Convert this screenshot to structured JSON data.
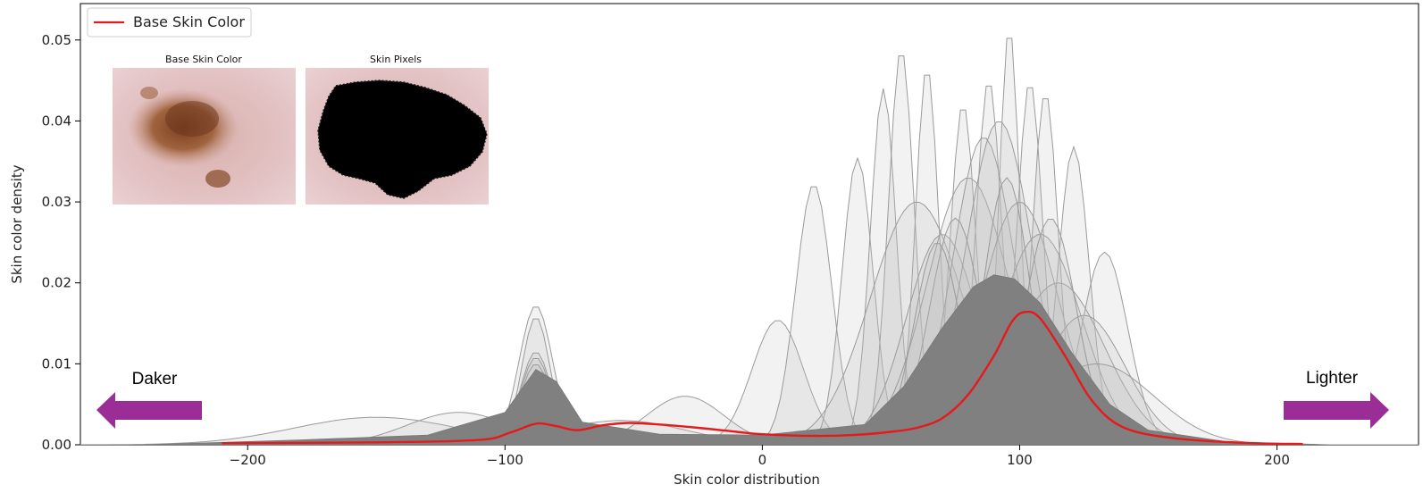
{
  "chart_data": {
    "type": "area",
    "xlabel": "Skin color distribution",
    "ylabel": "Skin color density",
    "xlim": [
      -265,
      255
    ],
    "ylim": [
      0,
      0.0545
    ],
    "x_ticks": [
      -200,
      -100,
      0,
      100,
      200
    ],
    "x_tick_labels": [
      "−200",
      "−100",
      "0",
      "100",
      "200"
    ],
    "y_ticks": [
      0,
      0.01,
      0.02,
      0.03,
      0.04,
      0.05
    ],
    "y_tick_labels": [
      "0.00",
      "0.01",
      "0.02",
      "0.03",
      "0.04",
      "0.05"
    ],
    "legend": {
      "placement": "top-left",
      "entries": [
        {
          "label": "Base Skin Color",
          "color": "#e41a1c"
        }
      ]
    },
    "series": [
      {
        "name": "Base Skin Color",
        "color": "#e41a1c",
        "points": [
          [
            -210,
            0.0002
          ],
          [
            -150,
            0.0003
          ],
          [
            -110,
            0.0006
          ],
          [
            -98,
            0.0015
          ],
          [
            -88,
            0.0026
          ],
          [
            -80,
            0.0023
          ],
          [
            -72,
            0.0018
          ],
          [
            -62,
            0.0024
          ],
          [
            -52,
            0.0027
          ],
          [
            -40,
            0.0025
          ],
          [
            -25,
            0.0021
          ],
          [
            -10,
            0.0016
          ],
          [
            0,
            0.0013
          ],
          [
            20,
            0.0011
          ],
          [
            35,
            0.0012
          ],
          [
            50,
            0.0016
          ],
          [
            60,
            0.0021
          ],
          [
            70,
            0.0033
          ],
          [
            80,
            0.0062
          ],
          [
            90,
            0.011
          ],
          [
            97,
            0.0152
          ],
          [
            102,
            0.0164
          ],
          [
            108,
            0.0156
          ],
          [
            118,
            0.0108
          ],
          [
            128,
            0.0055
          ],
          [
            140,
            0.0022
          ],
          [
            160,
            0.0008
          ],
          [
            190,
            0.0002
          ],
          [
            210,
            0.0001
          ]
        ]
      },
      {
        "name": "",
        "color": "#808080",
        "points": [
          [
            -240,
            0
          ],
          [
            -180,
            0.0006
          ],
          [
            -130,
            0.0012
          ],
          [
            -100,
            0.004
          ],
          [
            -88,
            0.0093
          ],
          [
            -80,
            0.0078
          ],
          [
            -70,
            0.0028
          ],
          [
            -40,
            0.0013
          ],
          [
            0,
            0.0012
          ],
          [
            40,
            0.0025
          ],
          [
            55,
            0.0072
          ],
          [
            70,
            0.0145
          ],
          [
            82,
            0.0195
          ],
          [
            90,
            0.021
          ],
          [
            98,
            0.0205
          ],
          [
            108,
            0.0175
          ],
          [
            120,
            0.0115
          ],
          [
            135,
            0.005
          ],
          [
            150,
            0.0018
          ],
          [
            180,
            0.0004
          ],
          [
            220,
            0
          ]
        ]
      }
    ],
    "background_curves": [
      {
        "mu": -88,
        "sigma": 6.5,
        "amp": 0.0172
      },
      {
        "mu": -88,
        "sigma": 5.5,
        "amp": 0.0158
      },
      {
        "mu": -88,
        "sigma": 6,
        "amp": 0.0115
      },
      {
        "mu": -88,
        "sigma": 6,
        "amp": 0.0108
      },
      {
        "mu": -88,
        "sigma": 6,
        "amp": 0.01
      },
      {
        "mu": 6,
        "sigma": 10,
        "amp": 0.0154
      },
      {
        "mu": 20,
        "sigma": 7,
        "amp": 0.0322
      },
      {
        "mu": 37,
        "sigma": 6,
        "amp": 0.0354
      },
      {
        "mu": 47,
        "sigma": 5,
        "amp": 0.044
      },
      {
        "mu": 54,
        "sigma": 5,
        "amp": 0.049
      },
      {
        "mu": 64,
        "sigma": 4.5,
        "amp": 0.0468
      },
      {
        "mu": 78,
        "sigma": 5,
        "amp": 0.0422
      },
      {
        "mu": 88,
        "sigma": 5,
        "amp": 0.0452
      },
      {
        "mu": 96,
        "sigma": 4,
        "amp": 0.0518
      },
      {
        "mu": 104,
        "sigma": 5,
        "amp": 0.045
      },
      {
        "mu": 110,
        "sigma": 5,
        "amp": 0.0436
      },
      {
        "mu": 121,
        "sigma": 6,
        "amp": 0.0368
      },
      {
        "mu": 133,
        "sigma": 9,
        "amp": 0.0238
      },
      {
        "mu": -150,
        "sigma": 32,
        "amp": 0.0034
      },
      {
        "mu": -118,
        "sigma": 20,
        "amp": 0.004
      },
      {
        "mu": -55,
        "sigma": 25,
        "amp": 0.003
      },
      {
        "mu": -30,
        "sigma": 15,
        "amp": 0.006
      },
      {
        "mu": 60,
        "sigma": 18,
        "amp": 0.03
      },
      {
        "mu": 70,
        "sigma": 14,
        "amp": 0.026
      },
      {
        "mu": 80,
        "sigma": 16,
        "amp": 0.033
      },
      {
        "mu": 86,
        "sigma": 12,
        "amp": 0.038
      },
      {
        "mu": 92,
        "sigma": 13,
        "amp": 0.04
      },
      {
        "mu": 100,
        "sigma": 15,
        "amp": 0.03
      },
      {
        "mu": 108,
        "sigma": 16,
        "amp": 0.026
      },
      {
        "mu": 115,
        "sigma": 18,
        "amp": 0.02
      },
      {
        "mu": 125,
        "sigma": 16,
        "amp": 0.016
      },
      {
        "mu": 130,
        "sigma": 22,
        "amp": 0.01
      },
      {
        "mu": 75,
        "sigma": 10,
        "amp": 0.028
      },
      {
        "mu": 95,
        "sigma": 9,
        "amp": 0.033
      },
      {
        "mu": 68,
        "sigma": 9,
        "amp": 0.025
      },
      {
        "mu": 112,
        "sigma": 10,
        "amp": 0.028
      }
    ]
  },
  "insets": [
    {
      "title": "Base Skin Color",
      "image": "skin-lesion-photo"
    },
    {
      "title": "Skin Pixels",
      "image": "lesion-masked-black"
    }
  ],
  "annotations": {
    "left_label": "Daker",
    "right_label": "Lighter",
    "arrow_color": "#9b2d96"
  }
}
